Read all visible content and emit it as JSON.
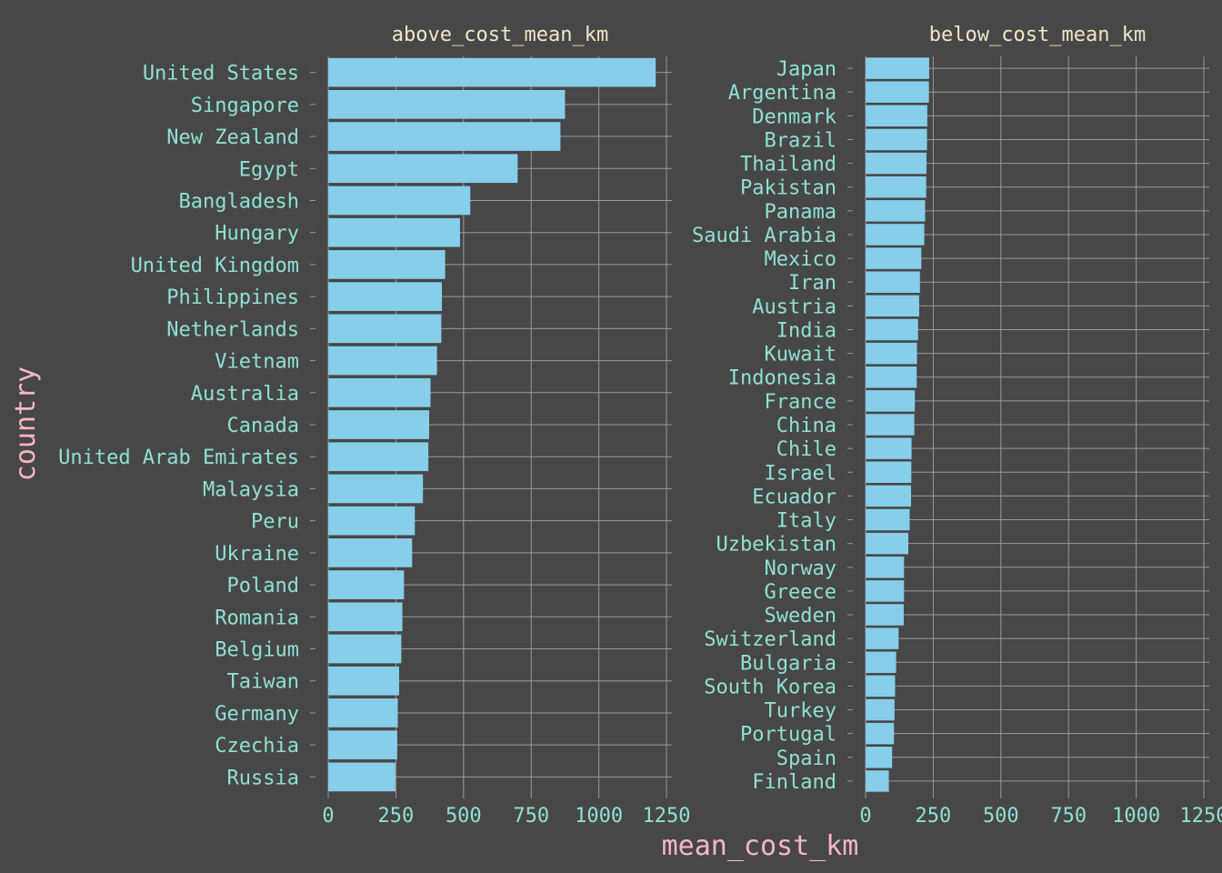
{
  "chart_data": {
    "type": "bar",
    "orientation": "horizontal",
    "xlabel": "mean_cost_km",
    "ylabel": "country",
    "grid": true,
    "bar_color": "#87ceeb",
    "background": "#474747",
    "text_color": "#8fe0d4",
    "axis_title_color": "#f7b7c3",
    "facet_title_color": "#f1e6c8",
    "xticks": [
      0,
      250,
      500,
      750,
      1000,
      1250
    ],
    "xlim": [
      0,
      1270
    ],
    "facets": [
      {
        "title": "above_cost_mean_km",
        "categories": [
          "United States",
          "Singapore",
          "New Zealand",
          "Egypt",
          "Bangladesh",
          "Hungary",
          "United Kingdom",
          "Philippines",
          "Netherlands",
          "Vietnam",
          "Australia",
          "Canada",
          "United Arab Emirates",
          "Malaysia",
          "Peru",
          "Ukraine",
          "Poland",
          "Romania",
          "Belgium",
          "Taiwan",
          "Germany",
          "Czechia",
          "Russia"
        ],
        "values": [
          1210,
          875,
          858,
          700,
          525,
          487,
          432,
          420,
          418,
          402,
          378,
          373,
          370,
          350,
          320,
          310,
          280,
          274,
          270,
          262,
          257,
          255,
          248
        ]
      },
      {
        "title": "below_cost_mean_km",
        "categories": [
          "Japan",
          "Argentina",
          "Denmark",
          "Brazil",
          "Thailand",
          "Pakistan",
          "Panama",
          "Saudi Arabia",
          "Mexico",
          "Iran",
          "Austria",
          "India",
          "Kuwait",
          "Indonesia",
          "France",
          "China",
          "Chile",
          "Israel",
          "Ecuador",
          "Italy",
          "Uzbekistan",
          "Norway",
          "Greece",
          "Sweden",
          "Switzerland",
          "Bulgaria",
          "South Korea",
          "Turkey",
          "Portugal",
          "Spain",
          "Finland"
        ],
        "values": [
          235,
          234,
          228,
          227,
          225,
          224,
          220,
          217,
          206,
          201,
          198,
          194,
          190,
          189,
          182,
          180,
          170,
          169,
          168,
          163,
          158,
          142,
          142,
          141,
          122,
          113,
          109,
          107,
          105,
          98,
          86
        ]
      }
    ]
  }
}
